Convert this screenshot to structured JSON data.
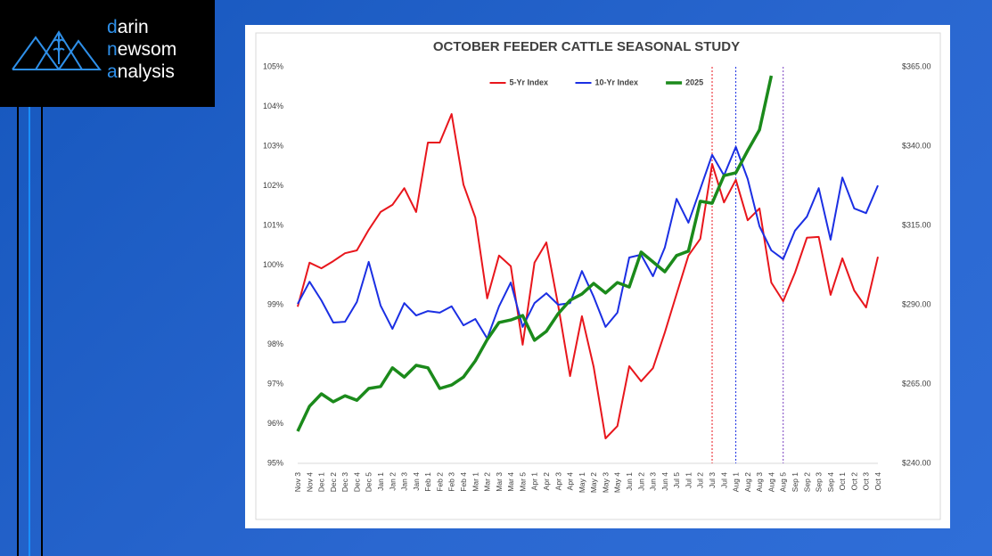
{
  "logo": {
    "lines": [
      "darin",
      "newsom",
      "analysis"
    ]
  },
  "chart_data": {
    "type": "line",
    "title": "OCTOBER FEEDER CATTLE SEASONAL STUDY",
    "categories": [
      "Nov 3",
      "Nov 4",
      "Dec 1",
      "Dec 2",
      "Dec 3",
      "Dec 4",
      "Dec 5",
      "Jan 1",
      "Jan 2",
      "Jan 3",
      "Jan 4",
      "Feb 1",
      "Feb 2",
      "Feb 3",
      "Feb 4",
      "Mar 1",
      "Mar 2",
      "Mar 3",
      "Mar 4",
      "Mar 5",
      "Apr 1",
      "Apr 2",
      "Apr 3",
      "Apr 4",
      "May 1",
      "May 2",
      "May 3",
      "May 4",
      "Jun 1",
      "Jun 2",
      "Jun 3",
      "Jun 4",
      "Jul 5",
      "Jul 1",
      "Jul 2",
      "Jul 3",
      "Jul 4",
      "Aug 1",
      "Aug 2",
      "Aug 3",
      "Aug 4",
      "Aug 5",
      "Sep 1",
      "Sep 2",
      "Sep 3",
      "Sep 4",
      "Oct 1",
      "Oct 2",
      "Oct 3",
      "Oct 4"
    ],
    "series": [
      {
        "name": "5-Yr Index",
        "color": "#e8161c",
        "width": 2,
        "values": [
          98.95,
          100.06,
          99.92,
          100.1,
          100.3,
          100.37,
          100.89,
          101.34,
          101.52,
          101.94,
          101.34,
          103.09,
          103.09,
          103.81,
          102.03,
          101.2,
          99.16,
          100.24,
          99.97,
          97.99,
          100.06,
          100.57,
          98.98,
          97.2,
          98.71,
          97.43,
          95.63,
          95.94,
          97.45,
          97.07,
          97.4,
          98.3,
          99.27,
          100.24,
          100.66,
          102.55,
          101.58,
          102.15,
          101.13,
          101.43,
          99.56,
          99.09,
          99.81,
          100.69,
          100.71,
          99.25,
          100.17,
          99.36,
          98.93,
          100.21
        ]
      },
      {
        "name": "10-Yr Index",
        "color": "#1b2fe3",
        "width": 2,
        "values": [
          99.02,
          99.58,
          99.11,
          98.55,
          98.57,
          99.07,
          100.08,
          98.98,
          98.39,
          99.04,
          98.73,
          98.84,
          98.8,
          98.96,
          98.48,
          98.64,
          98.15,
          98.96,
          99.56,
          98.44,
          99.04,
          99.29,
          99.0,
          99.04,
          99.85,
          99.2,
          98.44,
          98.8,
          100.19,
          100.26,
          99.72,
          100.44,
          101.67,
          101.07,
          101.92,
          102.78,
          102.26,
          102.98,
          102.17,
          100.98,
          100.37,
          100.15,
          100.87,
          101.22,
          101.94,
          100.64,
          102.21,
          101.43,
          101.31,
          102.01
        ]
      },
      {
        "name": "2025",
        "color": "#1b8a1b",
        "width": 3.5,
        "axis": "y2",
        "values": [
          250.1,
          258.0,
          261.9,
          259.4,
          261.3,
          259.9,
          263.6,
          264.2,
          270.1,
          267.2,
          270.9,
          270.1,
          263.6,
          264.7,
          267.2,
          272.3,
          279.0,
          284.4,
          285.2,
          286.6,
          278.8,
          281.6,
          287.2,
          291.4,
          293.4,
          296.7,
          293.7,
          297.0,
          295.6,
          306.6,
          303.5,
          300.4,
          305.5,
          306.9,
          322.6,
          322.0,
          330.7,
          331.6,
          338.6,
          345.1,
          362.2,
          null,
          null,
          null,
          null,
          null,
          null,
          null,
          null,
          null
        ]
      }
    ],
    "ylim": [
      95,
      105
    ],
    "yticks": [
      {
        "value": 95,
        "label": "95%"
      },
      {
        "value": 96,
        "label": "96%"
      },
      {
        "value": 97,
        "label": "97%"
      },
      {
        "value": 98,
        "label": "98%"
      },
      {
        "value": 99,
        "label": "99%"
      },
      {
        "value": 100,
        "label": "100%"
      },
      {
        "value": 101,
        "label": "101%"
      },
      {
        "value": 102,
        "label": "102%"
      },
      {
        "value": 103,
        "label": "103%"
      },
      {
        "value": 104,
        "label": "104%"
      },
      {
        "value": 105,
        "label": "105%"
      }
    ],
    "y2lim": [
      240,
      365
    ],
    "y2ticks": [
      {
        "value": 240,
        "label": "$240.00"
      },
      {
        "value": 265,
        "label": "$265.00"
      },
      {
        "value": 290,
        "label": "$290.00"
      },
      {
        "value": 315,
        "label": "$315.00"
      },
      {
        "value": 340,
        "label": "$340.00"
      },
      {
        "value": 365,
        "label": "$365.00"
      }
    ],
    "grid": false,
    "legend": "top",
    "vlines": [
      {
        "category": "Jul 3",
        "color": "#e8161c"
      },
      {
        "category": "Aug 1",
        "color": "#1b2fe3"
      },
      {
        "category": "Aug 5",
        "color": "#7a3fc0"
      }
    ]
  }
}
